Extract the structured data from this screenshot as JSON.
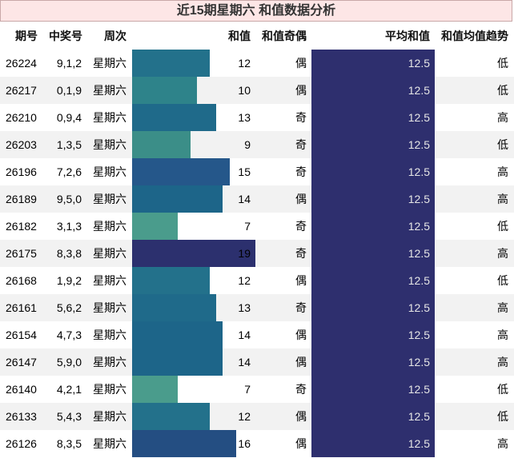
{
  "title": "近15期星期六 和值数据分析",
  "headers": {
    "issue": "期号",
    "numbers": "中奖号",
    "weekday": "周次",
    "sum": "和值",
    "odd_even": "和值奇偶",
    "avg": "平均和值",
    "trend": "和值均值趋势"
  },
  "colors": {
    "title_bg": "#fde6e6",
    "avg_bg": "#2e2f6e",
    "row_shade": "#f2f2f2"
  },
  "max_sum": 19,
  "rows": [
    {
      "issue": "26224",
      "numbers": "9,1,2",
      "weekday": "星期六",
      "sum": 12,
      "sum_label": "12",
      "parity": "偶",
      "avg": "12.5",
      "trend": "低",
      "bar_color": "#23718b"
    },
    {
      "issue": "26217",
      "numbers": "0,1,9",
      "weekday": "星期六",
      "sum": 10,
      "sum_label": "10",
      "parity": "偶",
      "avg": "12.5",
      "trend": "低",
      "bar_color": "#2e838a"
    },
    {
      "issue": "26210",
      "numbers": "0,9,4",
      "weekday": "星期六",
      "sum": 13,
      "sum_label": "13",
      "parity": "奇",
      "avg": "12.5",
      "trend": "高",
      "bar_color": "#1f6a8a"
    },
    {
      "issue": "26203",
      "numbers": "1,3,5",
      "weekday": "星期六",
      "sum": 9,
      "sum_label": "9",
      "parity": "奇",
      "avg": "12.5",
      "trend": "低",
      "bar_color": "#3b8e88"
    },
    {
      "issue": "26196",
      "numbers": "7,2,6",
      "weekday": "星期六",
      "sum": 15,
      "sum_label": "15",
      "parity": "奇",
      "avg": "12.5",
      "trend": "高",
      "bar_color": "#25578a"
    },
    {
      "issue": "26189",
      "numbers": "9,5,0",
      "weekday": "星期六",
      "sum": 14,
      "sum_label": "14",
      "parity": "偶",
      "avg": "12.5",
      "trend": "高",
      "bar_color": "#1d6589"
    },
    {
      "issue": "26182",
      "numbers": "3,1,3",
      "weekday": "星期六",
      "sum": 7,
      "sum_label": "7",
      "parity": "奇",
      "avg": "12.5",
      "trend": "低",
      "bar_color": "#4a9c8c"
    },
    {
      "issue": "26175",
      "numbers": "8,3,8",
      "weekday": "星期六",
      "sum": 19,
      "sum_label": "19",
      "parity": "奇",
      "avg": "12.5",
      "trend": "高",
      "bar_color": "#2c306e"
    },
    {
      "issue": "26168",
      "numbers": "1,9,2",
      "weekday": "星期六",
      "sum": 12,
      "sum_label": "12",
      "parity": "偶",
      "avg": "12.5",
      "trend": "低",
      "bar_color": "#23718b"
    },
    {
      "issue": "26161",
      "numbers": "5,6,2",
      "weekday": "星期六",
      "sum": 13,
      "sum_label": "13",
      "parity": "奇",
      "avg": "12.5",
      "trend": "高",
      "bar_color": "#1f6a8a"
    },
    {
      "issue": "26154",
      "numbers": "4,7,3",
      "weekday": "星期六",
      "sum": 14,
      "sum_label": "14",
      "parity": "偶",
      "avg": "12.5",
      "trend": "高",
      "bar_color": "#1d6589"
    },
    {
      "issue": "26147",
      "numbers": "5,9,0",
      "weekday": "星期六",
      "sum": 14,
      "sum_label": "14",
      "parity": "偶",
      "avg": "12.5",
      "trend": "高",
      "bar_color": "#1d6589"
    },
    {
      "issue": "26140",
      "numbers": "4,2,1",
      "weekday": "星期六",
      "sum": 7,
      "sum_label": "7",
      "parity": "奇",
      "avg": "12.5",
      "trend": "低",
      "bar_color": "#4a9c8c"
    },
    {
      "issue": "26133",
      "numbers": "5,4,3",
      "weekday": "星期六",
      "sum": 12,
      "sum_label": "12",
      "parity": "偶",
      "avg": "12.5",
      "trend": "低",
      "bar_color": "#23718b"
    },
    {
      "issue": "26126",
      "numbers": "8,3,5",
      "weekday": "星期六",
      "sum": 16,
      "sum_label": "16",
      "parity": "偶",
      "avg": "12.5",
      "trend": "高",
      "bar_color": "#244e82"
    }
  ]
}
